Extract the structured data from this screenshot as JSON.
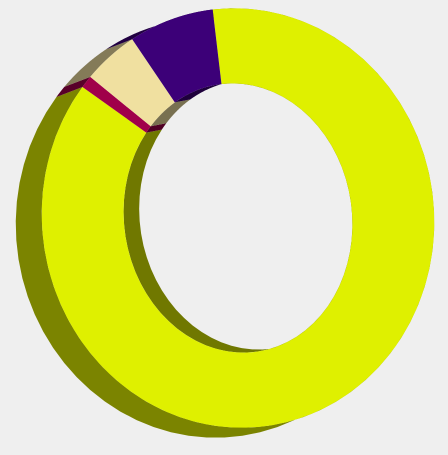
{
  "chart_data": {
    "type": "pie",
    "donut": true,
    "three_d": true,
    "title": "",
    "legend": "none",
    "slices": [
      {
        "value": 87.5,
        "color": "#dff000"
      },
      {
        "value": 1.0,
        "color": "#a0004a"
      },
      {
        "value": 4.5,
        "color": "#f0e0a0"
      },
      {
        "value": 7.0,
        "color": "#3c0078"
      }
    ]
  }
}
